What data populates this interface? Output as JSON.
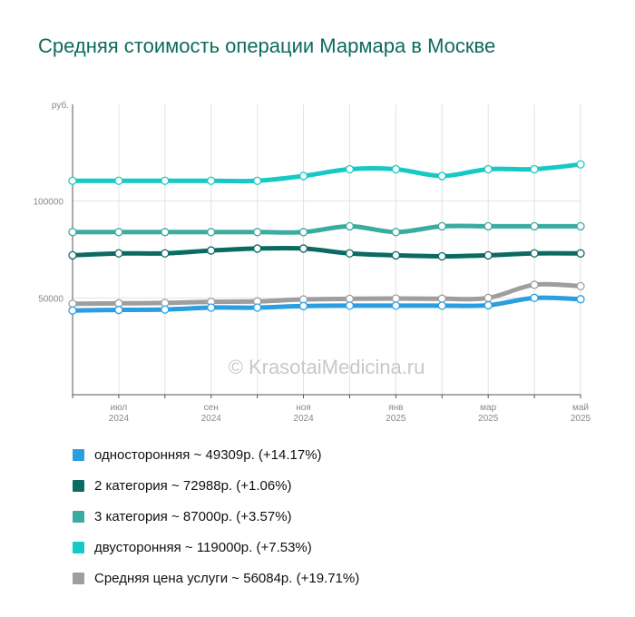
{
  "chart_data": {
    "type": "line",
    "title": "Средняя стоимость операции Мармара в Москве",
    "y_unit": "руб.",
    "ylim": [
      0,
      150000
    ],
    "y_ticks": [
      {
        "value": 50000,
        "label": "50000"
      },
      {
        "value": 100000,
        "label": "100000"
      }
    ],
    "x_count": 12,
    "x_ticks": [
      {
        "index": 1,
        "month": "июл",
        "year": "2024"
      },
      {
        "index": 3,
        "month": "сен",
        "year": "2024"
      },
      {
        "index": 5,
        "month": "ноя",
        "year": "2024"
      },
      {
        "index": 7,
        "month": "янв",
        "year": "2025"
      },
      {
        "index": 9,
        "month": "мар",
        "year": "2025"
      },
      {
        "index": 11,
        "month": "май",
        "year": "2025"
      }
    ],
    "grid": true,
    "watermark": "© KrasotaiMedicina.ru",
    "series": [
      {
        "name": "Средняя цена услуги",
        "color": "#9e9e9e",
        "values": [
          47000,
          47200,
          47400,
          48000,
          48200,
          49200,
          49500,
          49700,
          49600,
          50000,
          56800,
          56084
        ],
        "legend": "Средняя цена услуги ~ 56084р. (+19.71%)"
      },
      {
        "name": "односторонняя",
        "color": "#2a9ee0",
        "values": [
          43500,
          43800,
          44000,
          45000,
          45000,
          45800,
          46000,
          46000,
          46000,
          46200,
          50000,
          49309
        ],
        "legend": "односторонняя ~ 49309р. (+14.17%)"
      },
      {
        "name": "2 категория",
        "color": "#0b6b62",
        "values": [
          72000,
          73000,
          73000,
          74500,
          75500,
          75500,
          73000,
          72000,
          71500,
          72000,
          73000,
          72988
        ],
        "legend": "2 категория ~ 72988р. (+1.06%)"
      },
      {
        "name": "3 категория",
        "color": "#3aaba0",
        "values": [
          84000,
          84000,
          84000,
          84000,
          84000,
          84000,
          87000,
          84000,
          87000,
          87000,
          87000,
          87000
        ],
        "legend": "3 категория ~ 87000р. (+3.57%)"
      },
      {
        "name": "двусторонняя",
        "color": "#17c9c4",
        "values": [
          110500,
          110500,
          110500,
          110500,
          110500,
          113000,
          116500,
          116500,
          113000,
          116500,
          116500,
          119000
        ],
        "legend": "двусторонняя ~ 119000р. (+7.53%)"
      }
    ],
    "legend_order": [
      1,
      2,
      3,
      4,
      0
    ],
    "legend_placement": "bottom"
  }
}
